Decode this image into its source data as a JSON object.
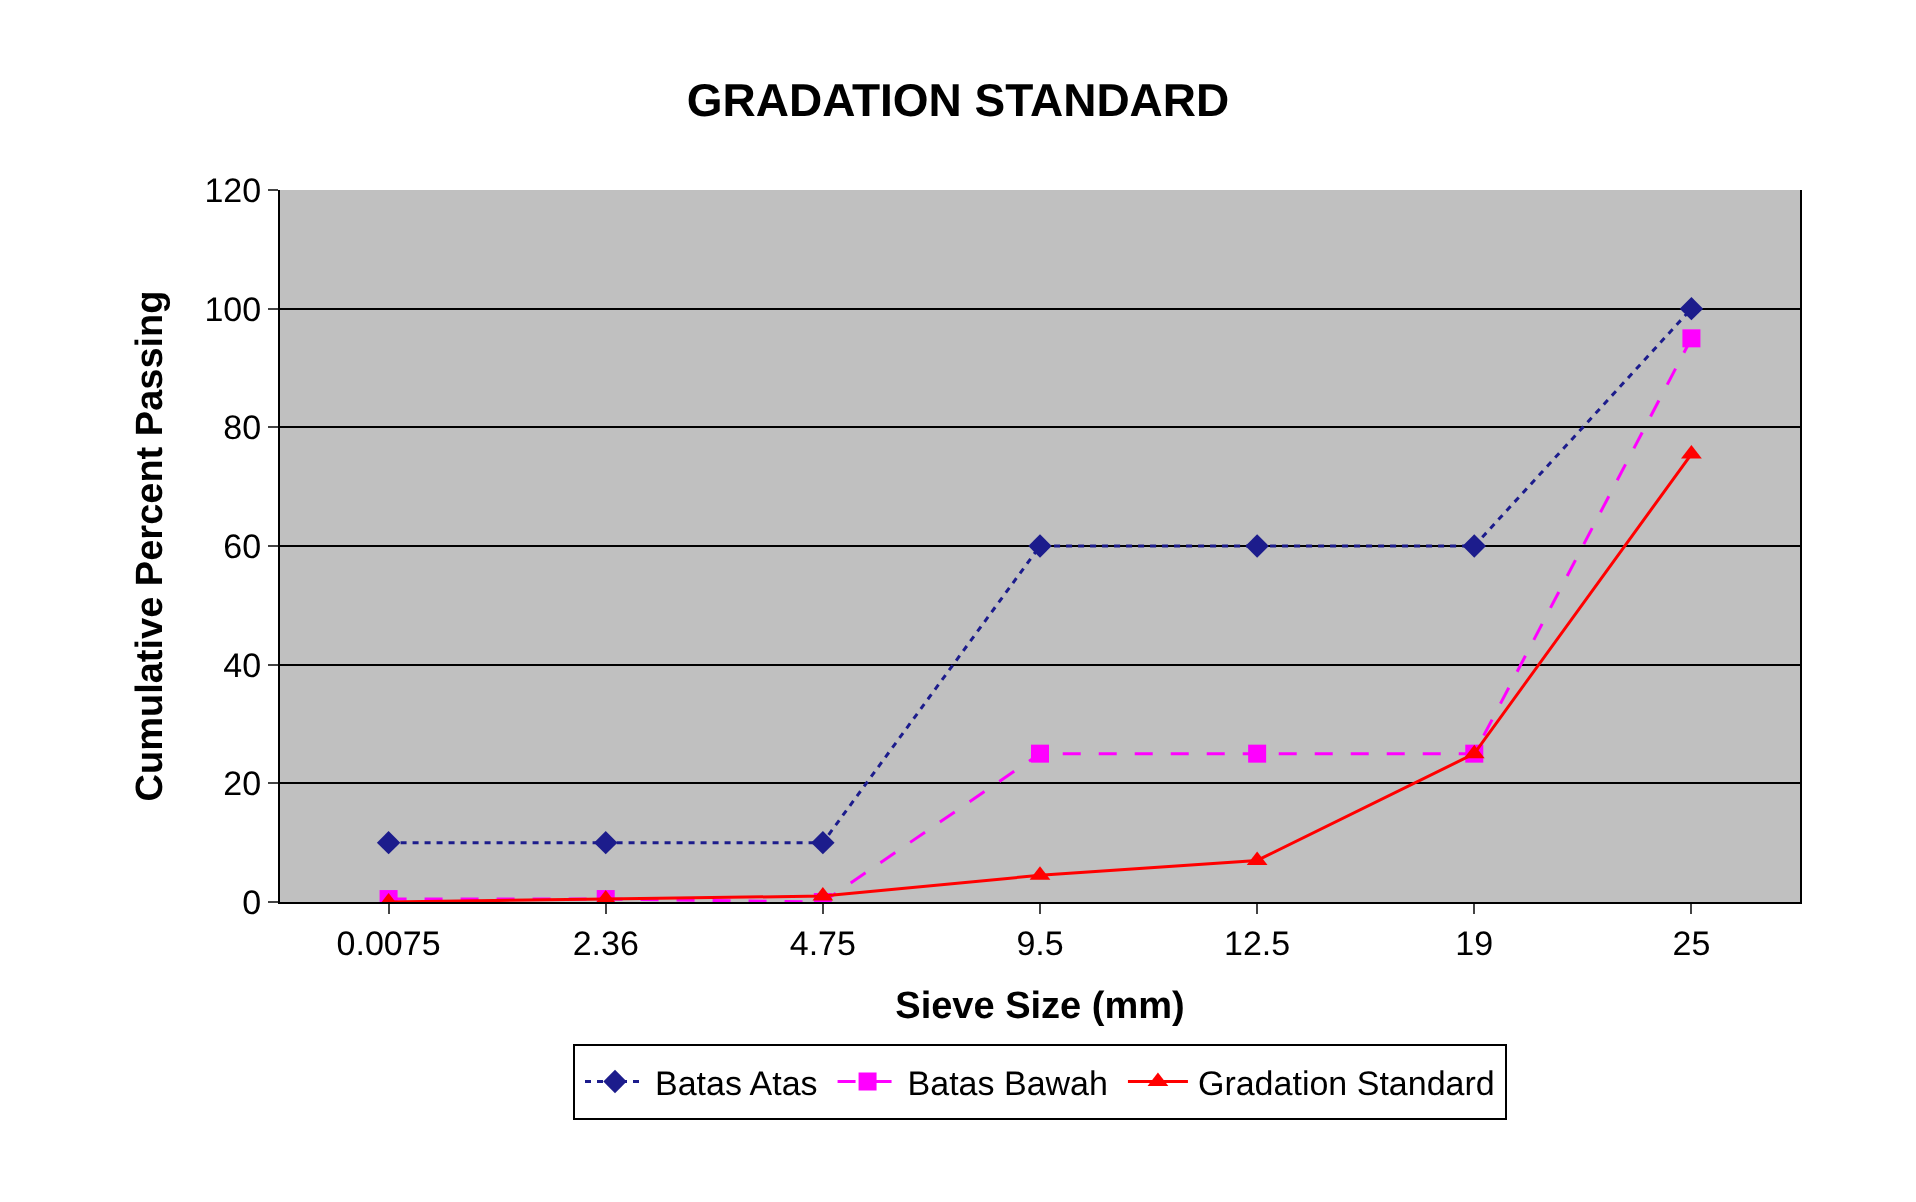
{
  "chart_data": {
    "type": "line",
    "title": "GRADATION STANDARD",
    "xlabel": "Sieve Size (mm)",
    "ylabel": "Cumulative Percent Passing",
    "categories": [
      "0.0075",
      "2.36",
      "4.75",
      "9.5",
      "12.5",
      "19",
      "25"
    ],
    "series": [
      {
        "name": "Batas Atas",
        "color": "#1c1c8c",
        "marker": "diamond",
        "line_style": "dotted",
        "values": [
          10,
          10,
          10,
          60,
          60,
          60,
          100
        ]
      },
      {
        "name": "Batas Bawah",
        "color": "#ff00ff",
        "marker": "square",
        "line_style": "dashed",
        "values": [
          0.5,
          0.5,
          0,
          25,
          25,
          25,
          95
        ]
      },
      {
        "name": "Gradation Standard",
        "color": "#ff0000",
        "marker": "triangle",
        "line_style": "solid",
        "values": [
          0,
          0.5,
          1,
          4.5,
          7,
          25,
          75.5
        ]
      }
    ],
    "ylim": [
      0,
      120
    ],
    "yticks": [
      0,
      20,
      40,
      60,
      80,
      100,
      120
    ],
    "grid": "y",
    "legend": "bottom"
  }
}
